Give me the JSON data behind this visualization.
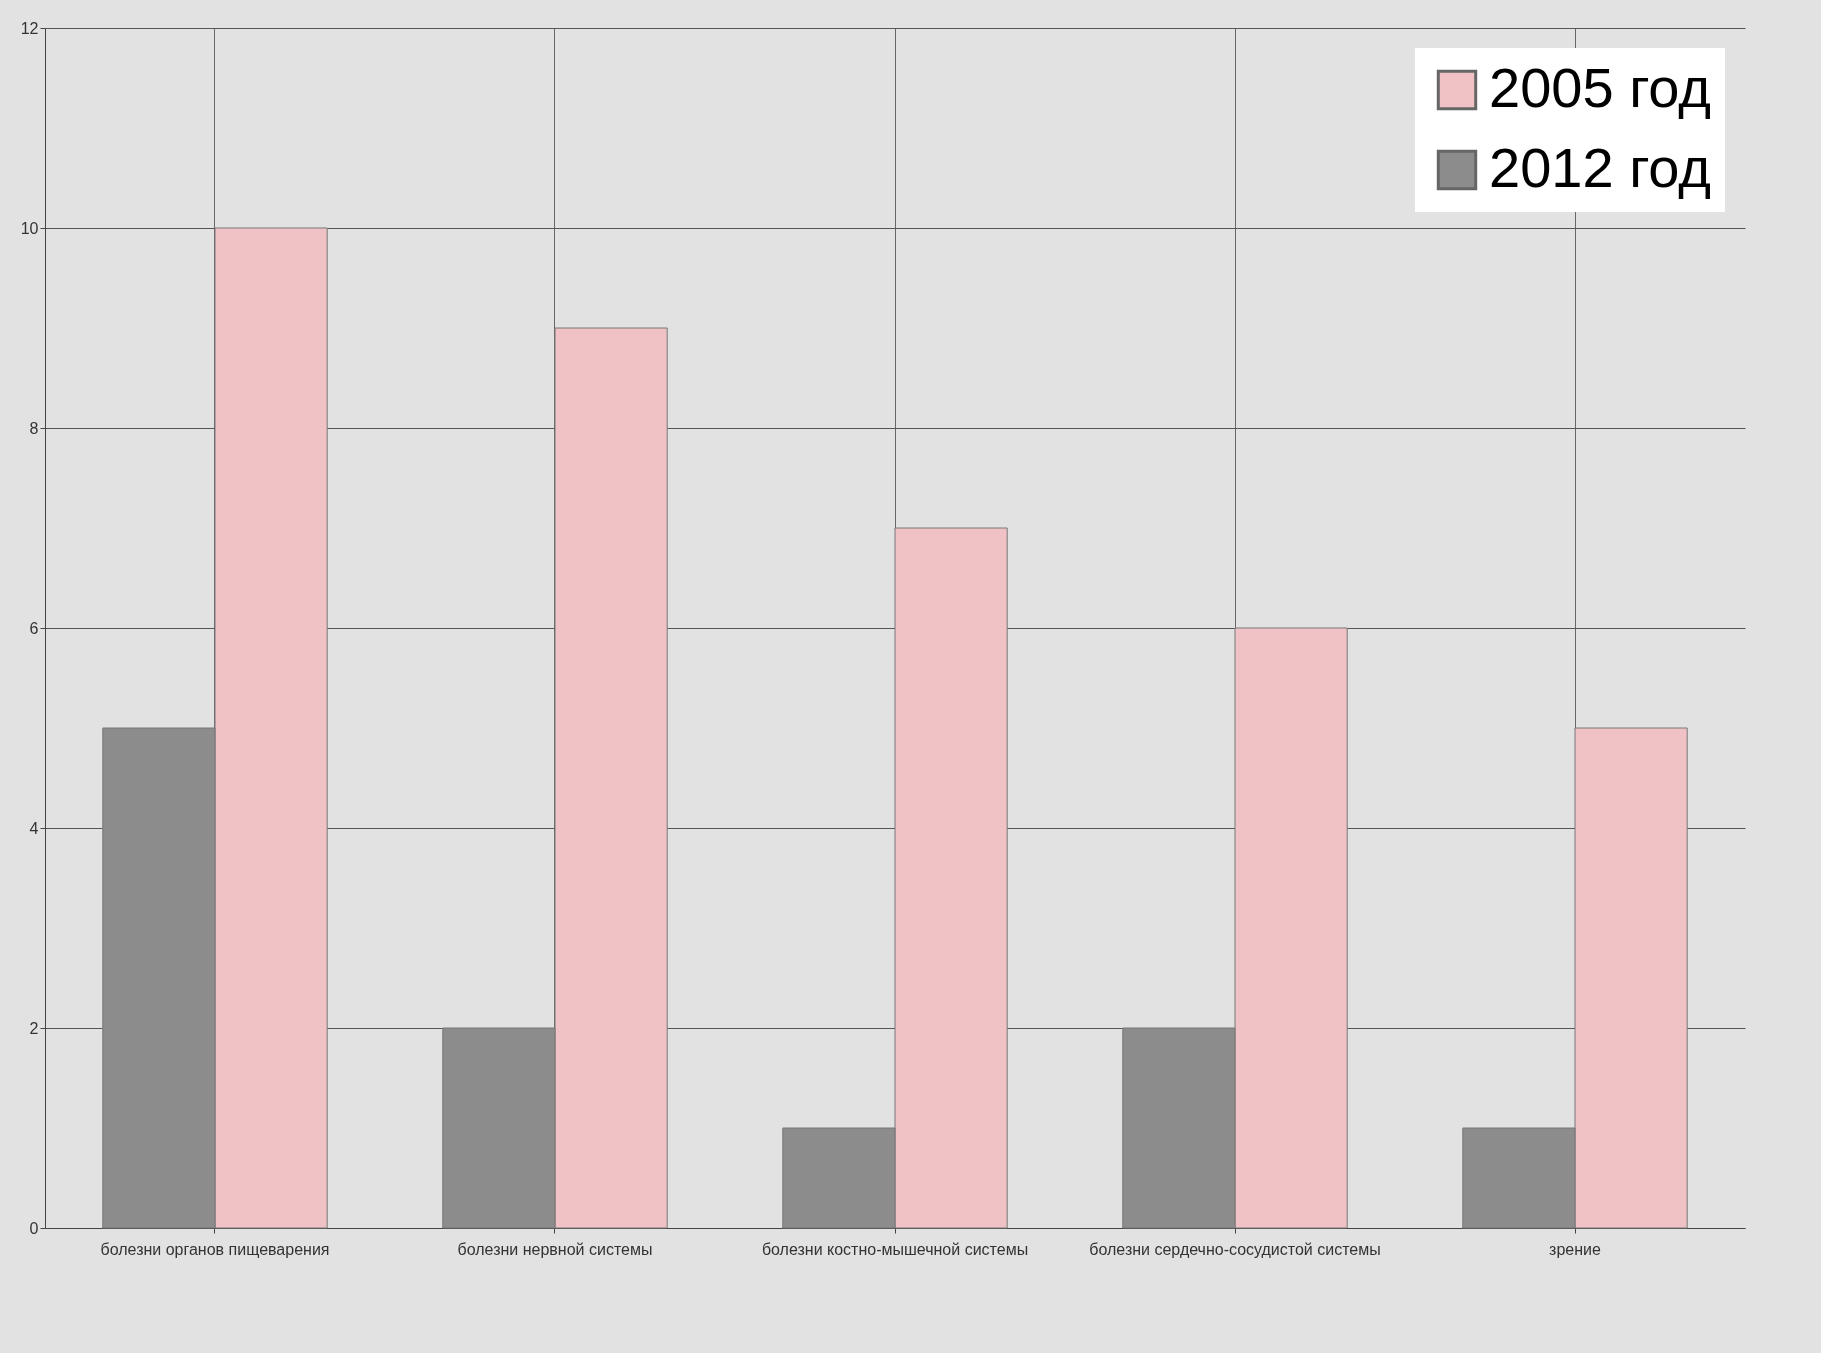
{
  "chart_data": {
    "type": "bar",
    "categories": [
      "болезни органов пищеварения",
      "болезни нервной системы",
      "болезни костно-мышечной системы",
      "болезни сердечно-сосудистой системы",
      "зрение"
    ],
    "series": [
      {
        "name": "2005 год",
        "color": "#f0c2c6",
        "values": [
          10,
          9,
          7,
          6,
          5
        ]
      },
      {
        "name": "2012 год",
        "color": "#8c8c8c",
        "values": [
          5,
          2,
          1,
          2,
          1
        ]
      }
    ],
    "ylim": [
      0,
      12
    ],
    "yticks": [
      0,
      2,
      4,
      6,
      8,
      10,
      12
    ],
    "grid": true,
    "legend": "top right"
  }
}
